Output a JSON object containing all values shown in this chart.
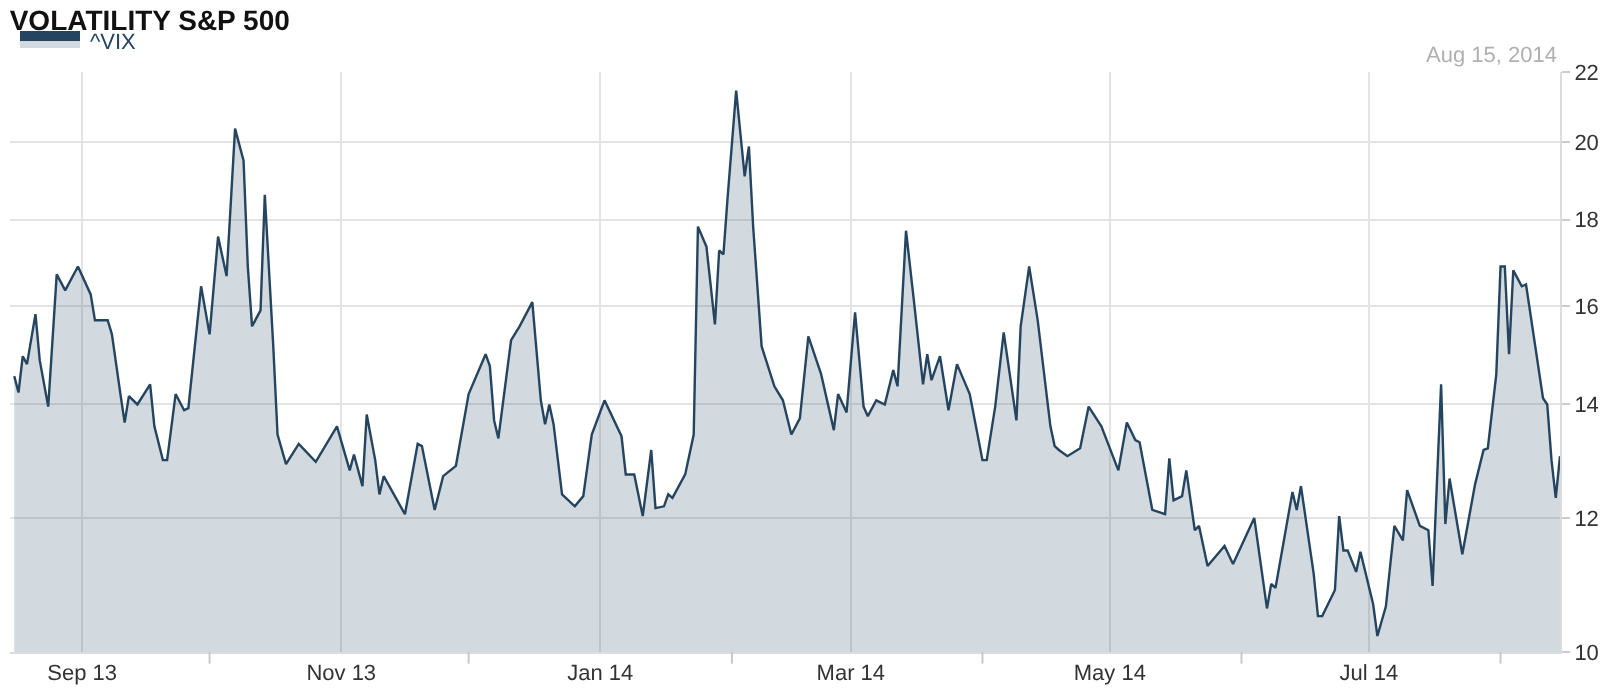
{
  "chart_data": {
    "type": "area",
    "title": "VOLATILITY S&P 500",
    "legend": "top left",
    "log": true,
    "grid": true,
    "xlim": [
      "2013-08-15",
      "2014-08-15"
    ],
    "xticks": [
      {
        "value": "2013-09-01",
        "label": "Sep 13"
      },
      {
        "value": "2013-10-01",
        "label": null
      },
      {
        "value": "2013-11-01",
        "label": "Nov 13"
      },
      {
        "value": "2013-12-01",
        "label": null
      },
      {
        "value": "2014-01-01",
        "label": "Jan 14"
      },
      {
        "value": "2014-02-01",
        "label": null
      },
      {
        "value": "2014-03-01",
        "label": "Mar 14"
      },
      {
        "value": "2014-04-01",
        "label": null
      },
      {
        "value": "2014-05-01",
        "label": "May 14"
      },
      {
        "value": "2014-06-01",
        "label": null
      },
      {
        "value": "2014-07-01",
        "label": "Jul 14"
      },
      {
        "value": "2014-08-01",
        "label": null
      }
    ],
    "ylim": [
      10,
      22
    ],
    "yticks": [
      10,
      12,
      14,
      16,
      18,
      20,
      22
    ],
    "annotations": [
      "Aug 15, 2014"
    ],
    "x": [
      "2013-08-16",
      "2013-08-17",
      "2013-08-18",
      "2013-08-19",
      "2013-08-21",
      "2013-08-22",
      "2013-08-24",
      "2013-08-26",
      "2013-08-28",
      "2013-08-31",
      "2013-09-03",
      "2013-09-04",
      "2013-09-07",
      "2013-09-08",
      "2013-09-10",
      "2013-09-11",
      "2013-09-12",
      "2013-09-14",
      "2013-09-17",
      "2013-09-18",
      "2013-09-20",
      "2013-09-21",
      "2013-09-23",
      "2013-09-25",
      "2013-09-26",
      "2013-09-29",
      "2013-10-01",
      "2013-10-03",
      "2013-10-05",
      "2013-10-07",
      "2013-10-09",
      "2013-10-10",
      "2013-10-11",
      "2013-10-13",
      "2013-10-14",
      "2013-10-16",
      "2013-10-17",
      "2013-10-19",
      "2013-10-22",
      "2013-10-26",
      "2013-10-31",
      "2013-11-03",
      "2013-11-04",
      "2013-11-06",
      "2013-11-07",
      "2013-11-09",
      "2013-11-10",
      "2013-11-11",
      "2013-11-16",
      "2013-11-19",
      "2013-11-20",
      "2013-11-23",
      "2013-11-25",
      "2013-11-28",
      "2013-12-01",
      "2013-12-05",
      "2013-12-06",
      "2013-12-07",
      "2013-12-08",
      "2013-12-11",
      "2013-12-13",
      "2013-12-16",
      "2013-12-18",
      "2013-12-19",
      "2013-12-20",
      "2013-12-21",
      "2013-12-23",
      "2013-12-26",
      "2013-12-28",
      "2013-12-30",
      "2014-01-02",
      "2014-01-06",
      "2014-01-07",
      "2014-01-09",
      "2014-01-11",
      "2014-01-13",
      "2014-01-14",
      "2014-01-16",
      "2014-01-17",
      "2014-01-18",
      "2014-01-21",
      "2014-01-23",
      "2014-01-24",
      "2014-01-26",
      "2014-01-28",
      "2014-01-29",
      "2014-01-30",
      "2014-01-31",
      "2014-02-02",
      "2014-02-04",
      "2014-02-05",
      "2014-02-06",
      "2014-02-08",
      "2014-02-11",
      "2014-02-13",
      "2014-02-15",
      "2014-02-17",
      "2014-02-19",
      "2014-02-22",
      "2014-02-25",
      "2014-02-26",
      "2014-02-28",
      "2014-03-02",
      "2014-03-04",
      "2014-03-05",
      "2014-03-07",
      "2014-03-09",
      "2014-03-11",
      "2014-03-12",
      "2014-03-14",
      "2014-03-16",
      "2014-03-18",
      "2014-03-19",
      "2014-03-20",
      "2014-03-22",
      "2014-03-24",
      "2014-03-26",
      "2014-03-29",
      "2014-04-01",
      "2014-04-02",
      "2014-04-04",
      "2014-04-06",
      "2014-04-09",
      "2014-04-10",
      "2014-04-12",
      "2014-04-14",
      "2014-04-17",
      "2014-04-18",
      "2014-04-19",
      "2014-04-21",
      "2014-04-24",
      "2014-04-26",
      "2014-04-29",
      "2014-05-03",
      "2014-05-05",
      "2014-05-07",
      "2014-05-08",
      "2014-05-11",
      "2014-05-14",
      "2014-05-15",
      "2014-05-16",
      "2014-05-18",
      "2014-05-19",
      "2014-05-21",
      "2014-05-22",
      "2014-05-24",
      "2014-05-28",
      "2014-05-30",
      "2014-06-04",
      "2014-06-07",
      "2014-06-08",
      "2014-06-09",
      "2014-06-13",
      "2014-06-14",
      "2014-06-15",
      "2014-06-18",
      "2014-06-19",
      "2014-06-20",
      "2014-06-23",
      "2014-06-24",
      "2014-06-25",
      "2014-06-26",
      "2014-06-28",
      "2014-06-29",
      "2014-07-02",
      "2014-07-03",
      "2014-07-05",
      "2014-07-07",
      "2014-07-09",
      "2014-07-10",
      "2014-07-13",
      "2014-07-15",
      "2014-07-16",
      "2014-07-17",
      "2014-07-18",
      "2014-07-19",
      "2014-07-20",
      "2014-07-23",
      "2014-07-26",
      "2014-07-28",
      "2014-07-29",
      "2014-07-31",
      "2014-08-01",
      "2014-08-02",
      "2014-08-03",
      "2014-08-04",
      "2014-08-06",
      "2014-08-07",
      "2014-08-11",
      "2014-08-12",
      "2014-08-13",
      "2014-08-14",
      "2014-08-15"
    ],
    "series": [
      {
        "name": "^VIX",
        "color": "#24445f",
        "values": [
          14.55,
          14.23,
          14.95,
          14.79,
          15.83,
          14.87,
          13.96,
          16.71,
          16.35,
          16.89,
          16.26,
          15.7,
          15.7,
          15.4,
          14.2,
          13.66,
          14.16,
          14.0,
          14.39,
          13.59,
          12.98,
          12.98,
          14.2,
          13.89,
          13.93,
          16.44,
          15.4,
          17.59,
          16.67,
          20.37,
          19.5,
          16.89,
          15.57,
          15.91,
          18.62,
          15.15,
          13.44,
          12.91,
          13.27,
          12.95,
          13.59,
          12.8,
          13.08,
          12.53,
          13.81,
          12.98,
          12.39,
          12.7,
          12.06,
          13.27,
          13.23,
          12.13,
          12.7,
          12.88,
          14.2,
          14.99,
          14.75,
          13.7,
          13.37,
          15.28,
          15.57,
          16.09,
          14.08,
          13.63,
          14.0,
          13.63,
          12.39,
          12.19,
          12.36,
          13.44,
          14.08,
          13.41,
          12.73,
          12.73,
          12.03,
          13.16,
          12.16,
          12.19,
          12.39,
          12.33,
          12.73,
          13.44,
          17.83,
          17.35,
          15.61,
          17.26,
          17.17,
          18.57,
          21.45,
          19.09,
          19.88,
          17.83,
          15.15,
          14.35,
          14.08,
          13.44,
          13.74,
          15.36,
          14.59,
          13.52,
          14.2,
          13.85,
          15.87,
          13.96,
          13.78,
          14.08,
          14.0,
          14.67,
          14.35,
          17.73,
          16.0,
          14.39,
          14.99,
          14.47,
          14.95,
          13.89,
          14.79,
          14.2,
          12.98,
          12.98,
          13.96,
          15.44,
          13.7,
          15.57,
          16.89,
          15.7,
          13.59,
          13.23,
          13.16,
          13.05,
          13.19,
          13.96,
          13.59,
          12.8,
          13.66,
          13.34,
          13.3,
          12.13,
          12.06,
          13.01,
          12.29,
          12.36,
          12.8,
          11.8,
          11.87,
          11.24,
          11.55,
          11.27,
          12.0,
          10.61,
          10.97,
          10.91,
          12.43,
          12.13,
          12.53,
          11.12,
          10.5,
          10.5,
          10.88,
          12.03,
          11.48,
          11.48,
          11.15,
          11.46,
          10.67,
          10.22,
          10.64,
          11.87,
          11.64,
          12.46,
          11.87,
          11.8,
          10.94,
          12.56,
          14.39,
          11.9,
          12.66,
          11.42,
          12.56,
          13.16,
          13.19,
          14.59,
          16.89,
          16.89,
          14.99,
          16.8,
          16.44,
          16.48,
          14.12,
          14.0,
          12.98,
          12.33,
          13.05
        ]
      }
    ]
  }
}
